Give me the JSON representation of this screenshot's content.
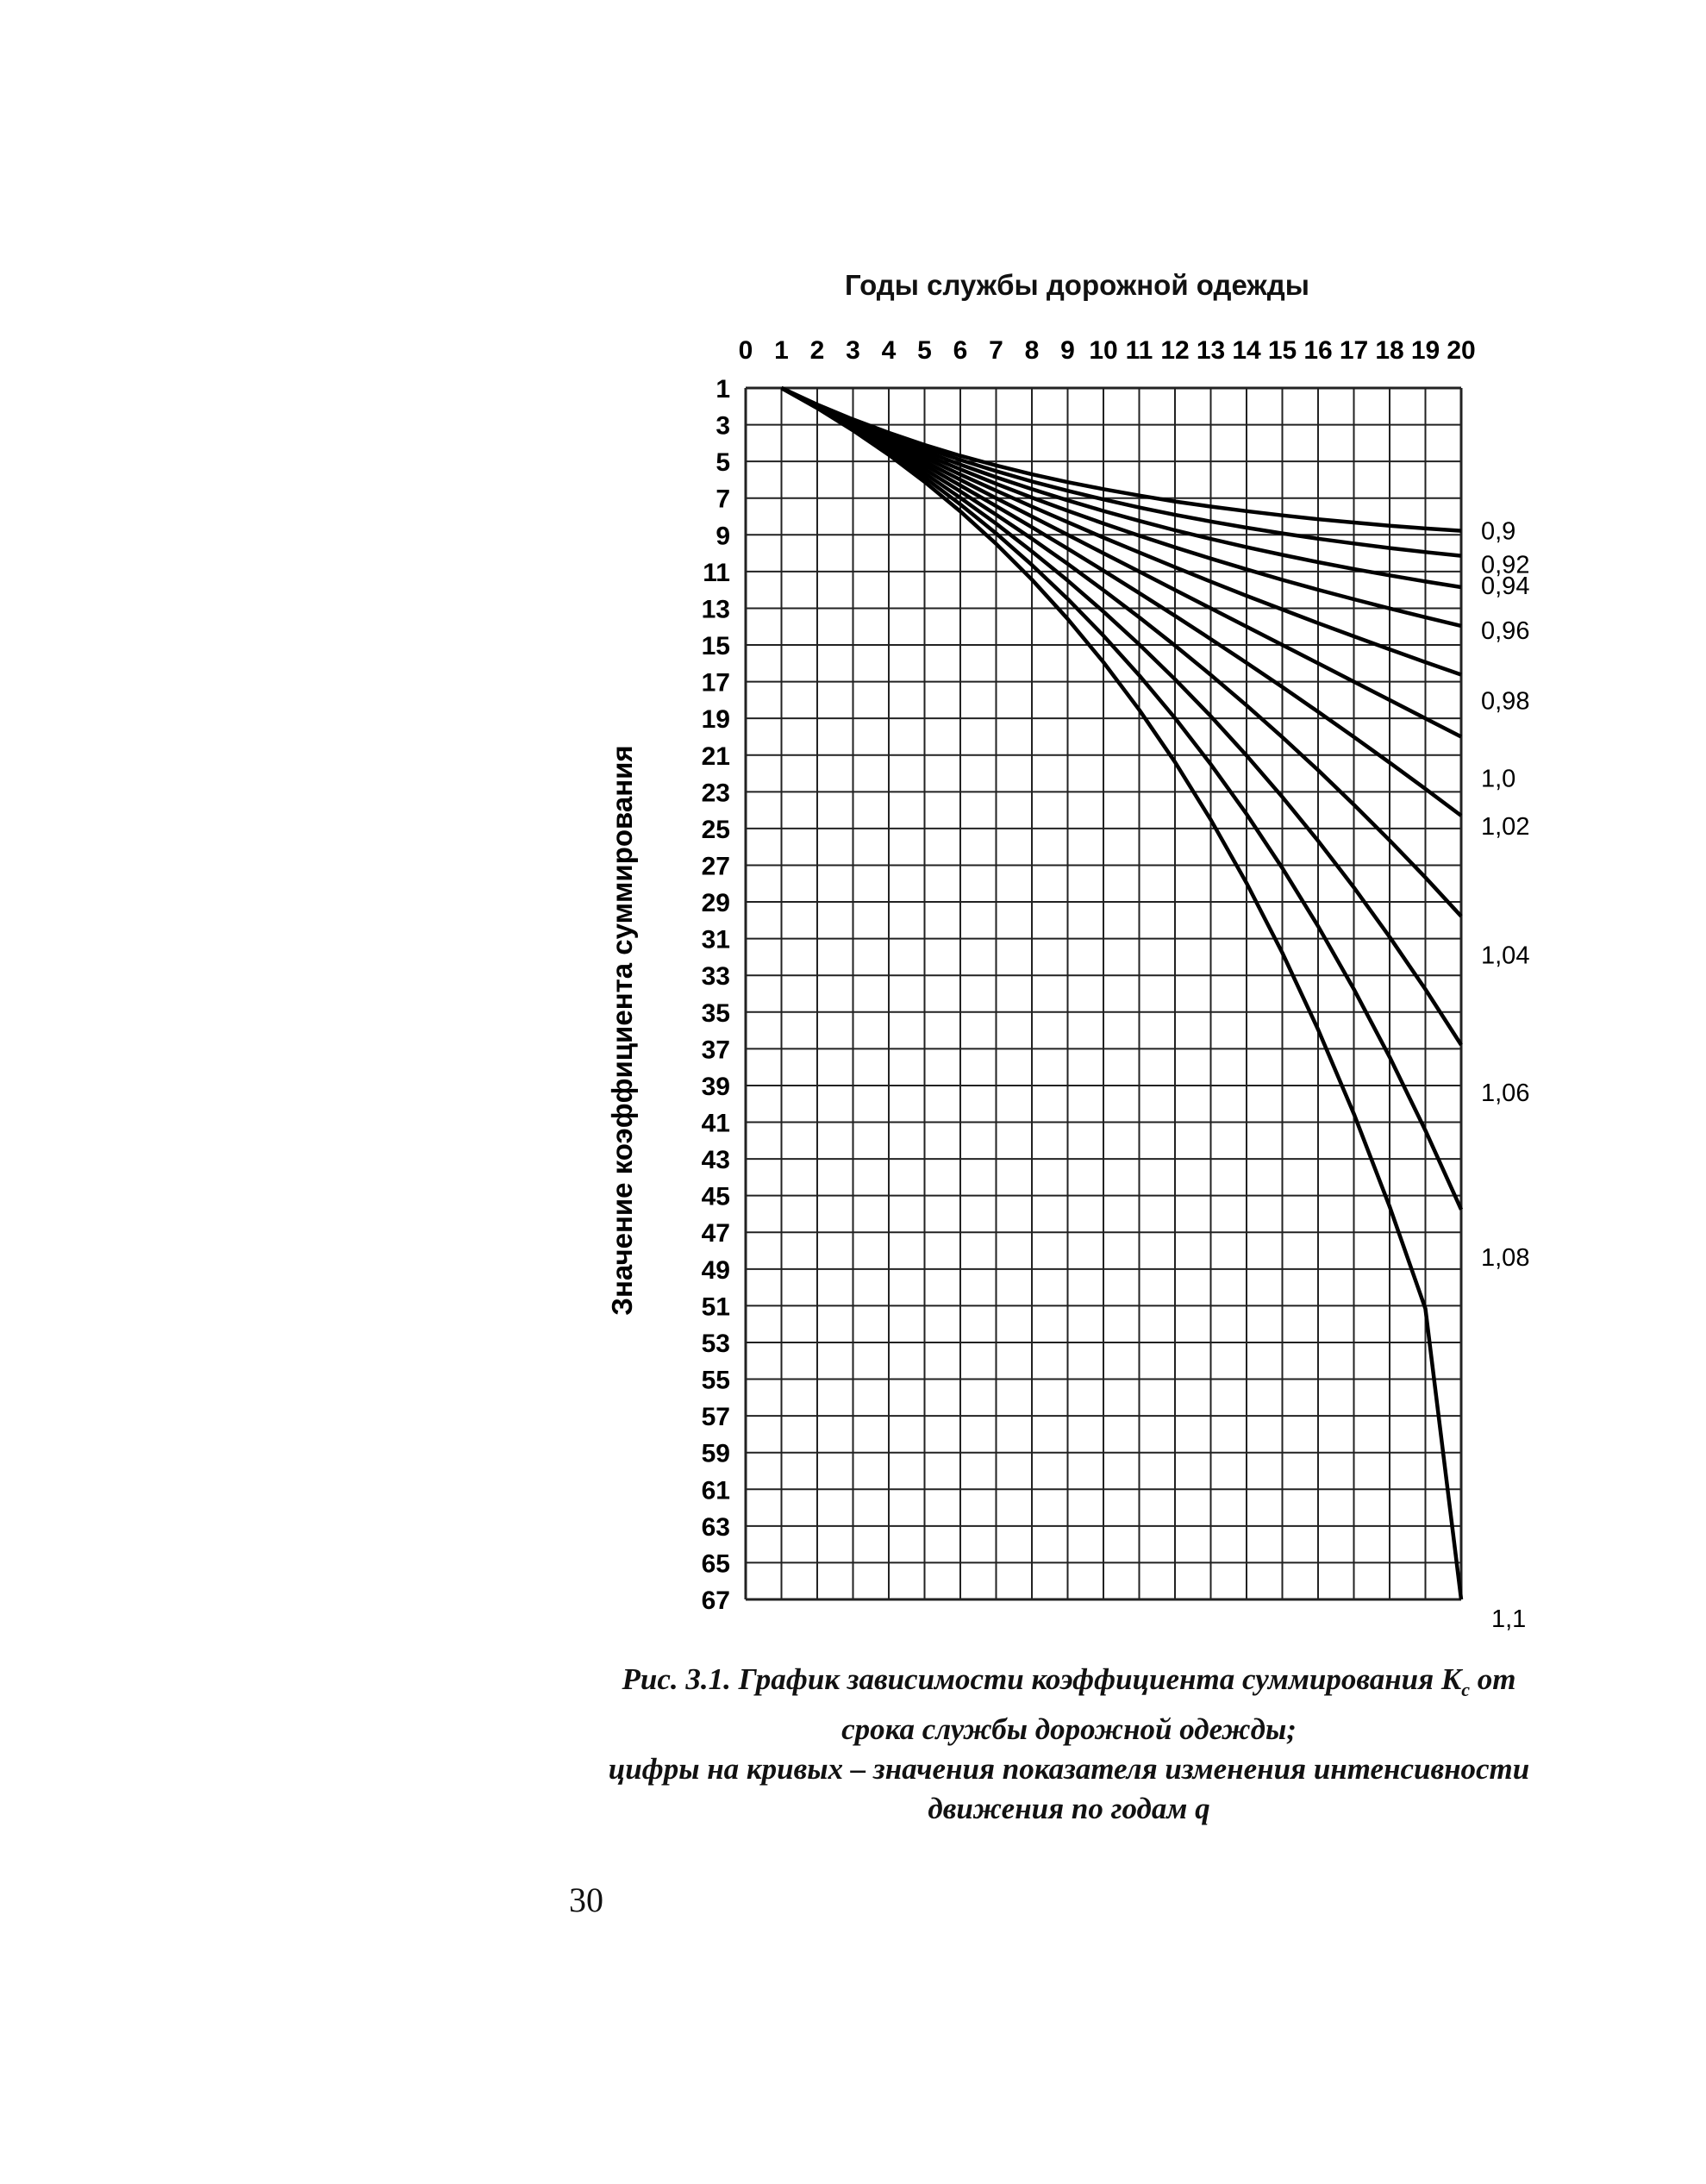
{
  "chart_data": {
    "type": "line",
    "title": "",
    "xlabel": "Годы службы дорожной одежды",
    "ylabel": "Значение коэффициента суммирования",
    "x_ticks": [
      "0",
      "1",
      "2",
      "3",
      "4",
      "5",
      "6",
      "7",
      "8",
      "9",
      "10",
      "11",
      "12",
      "13",
      "14",
      "15",
      "16",
      "17",
      "18",
      "19",
      "20"
    ],
    "y_ticks": [
      "1",
      "3",
      "5",
      "7",
      "9",
      "11",
      "13",
      "15",
      "17",
      "19",
      "21",
      "23",
      "25",
      "27",
      "29",
      "31",
      "33",
      "35",
      "37",
      "39",
      "41",
      "43",
      "45",
      "47",
      "49",
      "51",
      "53",
      "55",
      "57",
      "59",
      "61",
      "63",
      "65",
      "67"
    ],
    "xlim": [
      0,
      20
    ],
    "ylim": [
      1,
      67
    ],
    "y_inverted": true,
    "x_axis_position": "top",
    "grid": true,
    "series": [
      {
        "name": "0,9",
        "x": [
          1,
          2,
          3,
          4,
          5,
          6,
          7,
          8,
          9,
          10,
          11,
          12,
          13,
          14,
          15,
          16,
          17,
          18,
          19,
          20
        ],
        "y": [
          1,
          1.9,
          2.71,
          3.44,
          4.1,
          4.69,
          5.22,
          5.7,
          6.13,
          6.51,
          6.86,
          7.18,
          7.46,
          7.71,
          7.94,
          8.15,
          8.33,
          8.5,
          8.65,
          8.78
        ]
      },
      {
        "name": "0,92",
        "x": [
          1,
          2,
          3,
          4,
          5,
          6,
          7,
          8,
          9,
          10,
          11,
          12,
          13,
          14,
          15,
          16,
          17,
          18,
          19,
          20
        ],
        "y": [
          1,
          1.92,
          2.77,
          3.55,
          4.26,
          4.92,
          5.53,
          6.09,
          6.6,
          7.07,
          7.51,
          7.91,
          8.27,
          8.61,
          8.92,
          9.21,
          9.47,
          9.72,
          9.94,
          10.14
        ]
      },
      {
        "name": "0,94",
        "x": [
          1,
          2,
          3,
          4,
          5,
          6,
          7,
          8,
          9,
          10,
          11,
          12,
          13,
          14,
          15,
          16,
          17,
          18,
          19,
          20
        ],
        "y": [
          1,
          1.94,
          2.82,
          3.66,
          4.44,
          5.17,
          5.86,
          6.51,
          7.12,
          7.7,
          8.24,
          8.75,
          9.22,
          9.67,
          10.09,
          10.49,
          10.86,
          11.21,
          11.54,
          11.85
        ]
      },
      {
        "name": "0,96",
        "x": [
          1,
          2,
          3,
          4,
          5,
          6,
          7,
          8,
          9,
          10,
          11,
          12,
          13,
          14,
          15,
          16,
          17,
          18,
          19,
          20
        ],
        "y": [
          1,
          1.96,
          2.88,
          3.77,
          4.62,
          5.43,
          6.22,
          6.97,
          7.69,
          8.38,
          9.04,
          9.68,
          10.29,
          10.88,
          11.45,
          11.99,
          12.51,
          13.01,
          13.49,
          13.96
        ]
      },
      {
        "name": "0,98",
        "x": [
          1,
          2,
          3,
          4,
          5,
          6,
          7,
          8,
          9,
          10,
          11,
          12,
          13,
          14,
          15,
          16,
          17,
          18,
          19,
          20
        ],
        "y": [
          1,
          1.98,
          2.94,
          3.88,
          4.8,
          5.71,
          6.59,
          7.46,
          8.31,
          9.15,
          9.96,
          10.76,
          11.55,
          12.32,
          13.07,
          13.81,
          14.53,
          15.24,
          15.94,
          16.62
        ]
      },
      {
        "name": "1,0",
        "x": [
          1,
          2,
          3,
          4,
          5,
          6,
          7,
          8,
          9,
          10,
          11,
          12,
          13,
          14,
          15,
          16,
          17,
          18,
          19,
          20
        ],
        "y": [
          1,
          2,
          3,
          4,
          5,
          6,
          7,
          8,
          9,
          10,
          11,
          12,
          13,
          14,
          15,
          16,
          17,
          18,
          19,
          20
        ]
      },
      {
        "name": "1,02",
        "x": [
          1,
          2,
          3,
          4,
          5,
          6,
          7,
          8,
          9,
          10,
          11,
          12,
          13,
          14,
          15,
          16,
          17,
          18,
          19,
          20
        ],
        "y": [
          1,
          2.02,
          3.06,
          4.12,
          5.2,
          6.31,
          7.43,
          8.58,
          9.75,
          10.95,
          12.17,
          13.41,
          14.68,
          15.97,
          17.29,
          18.64,
          20.01,
          21.41,
          22.84,
          24.3
        ]
      },
      {
        "name": "1,04",
        "x": [
          1,
          2,
          3,
          4,
          5,
          6,
          7,
          8,
          9,
          10,
          11,
          12,
          13,
          14,
          15,
          16,
          17,
          18,
          19,
          20
        ],
        "y": [
          1,
          2.04,
          3.12,
          4.25,
          5.42,
          6.63,
          7.9,
          9.21,
          10.58,
          12.01,
          13.49,
          15.03,
          16.63,
          18.29,
          20.02,
          21.82,
          23.7,
          25.65,
          27.67,
          29.78
        ]
      },
      {
        "name": "1,06",
        "x": [
          1,
          2,
          3,
          4,
          5,
          6,
          7,
          8,
          9,
          10,
          11,
          12,
          13,
          14,
          15,
          16,
          17,
          18,
          19,
          20
        ],
        "y": [
          1,
          2.06,
          3.18,
          4.37,
          5.64,
          6.98,
          8.39,
          9.9,
          11.49,
          13.18,
          14.97,
          16.87,
          18.88,
          21.02,
          23.28,
          25.67,
          28.21,
          30.91,
          33.76,
          36.79
        ]
      },
      {
        "name": "1,08",
        "x": [
          1,
          2,
          3,
          4,
          5,
          6,
          7,
          8,
          9,
          10,
          11,
          12,
          13,
          14,
          15,
          16,
          17,
          18,
          19,
          20
        ],
        "y": [
          1,
          2.08,
          3.25,
          4.51,
          5.87,
          7.34,
          8.92,
          10.64,
          12.49,
          14.49,
          16.65,
          18.98,
          21.5,
          24.21,
          27.15,
          30.32,
          33.75,
          37.45,
          41.45,
          45.76
        ]
      },
      {
        "name": "1,1",
        "x": [
          1,
          2,
          3,
          4,
          5,
          6,
          7,
          8,
          9,
          10,
          11,
          12,
          13,
          14,
          15,
          16,
          17,
          18,
          19,
          20
        ],
        "y": [
          1,
          2.1,
          3.31,
          4.64,
          6.11,
          7.72,
          9.49,
          11.44,
          13.58,
          15.94,
          18.53,
          21.38,
          24.52,
          27.97,
          31.77,
          35.95,
          40.54,
          45.6,
          51.16,
          67
        ]
      }
    ]
  },
  "caption": {
    "line1_before": "Рис. 3.1. График зависимости коэффициента суммирования K",
    "line1_sub": "c",
    "line1_after": " от",
    "line2": "срока службы дорожной одежды;",
    "line3": "цифры на кривых – значения показателя изменения интенсивности",
    "line4": "движения по годам q"
  },
  "page_number": "30"
}
